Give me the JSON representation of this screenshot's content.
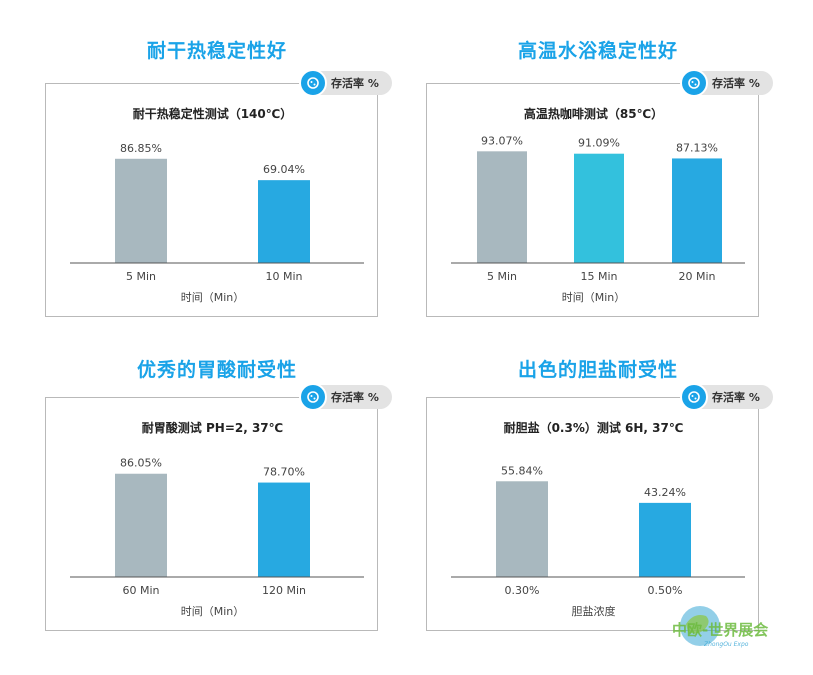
{
  "badge_label": "存活率 %",
  "colors": {
    "title": "#1aa3e8",
    "bar_gray": "#a8b8bf",
    "bar_blue": "#27a9e1",
    "bar_cyan": "#33c1dd"
  },
  "chart_data": [
    {
      "type": "bar",
      "section_title": "耐干热稳定性好",
      "title": "耐干热稳定性测试（140℃）",
      "xlabel": "时间（Min）",
      "ylabel": "存活率 %",
      "ylim": [
        0,
        100
      ],
      "categories": [
        "5 Min",
        "10 Min"
      ],
      "values": [
        86.85,
        69.04
      ],
      "labels": [
        "86.85%",
        "69.04%"
      ],
      "colors": [
        "#a8b8bf",
        "#27a9e1"
      ]
    },
    {
      "type": "bar",
      "section_title": "高温水浴稳定性好",
      "title": "高温热咖啡测试（85℃）",
      "xlabel": "时间（Min）",
      "ylabel": "存活率 %",
      "ylim": [
        0,
        100
      ],
      "categories": [
        "5 Min",
        "15 Min",
        "20 Min"
      ],
      "values": [
        93.07,
        91.09,
        87.13
      ],
      "labels": [
        "93.07%",
        "91.09%",
        "87.13%"
      ],
      "colors": [
        "#a8b8bf",
        "#33c1dd",
        "#27a9e1"
      ]
    },
    {
      "type": "bar",
      "section_title": "优秀的胃酸耐受性",
      "title": "耐胃酸测试 PH=2, 37℃",
      "xlabel": "时间（Min）",
      "ylabel": "存活率 %",
      "ylim": [
        0,
        100
      ],
      "categories": [
        "60 Min",
        "120 Min"
      ],
      "values": [
        86.05,
        78.7
      ],
      "labels": [
        "86.05%",
        "78.70%"
      ],
      "colors": [
        "#a8b8bf",
        "#27a9e1"
      ]
    },
    {
      "type": "bar",
      "section_title": "出色的胆盐耐受性",
      "title": "耐胆盐（0.3%）测试 6H, 37℃",
      "xlabel": "胆盐浓度",
      "ylabel": "存活率 %",
      "ylim": [
        0,
        70
      ],
      "categories": [
        "0.30%",
        "0.50%"
      ],
      "values": [
        55.84,
        43.24
      ],
      "labels": [
        "55.84%",
        "43.24%"
      ],
      "colors": [
        "#a8b8bf",
        "#27a9e1"
      ]
    }
  ],
  "watermark": {
    "text": "中欧-世界展会",
    "subtext": "ZhongOu Expo"
  }
}
